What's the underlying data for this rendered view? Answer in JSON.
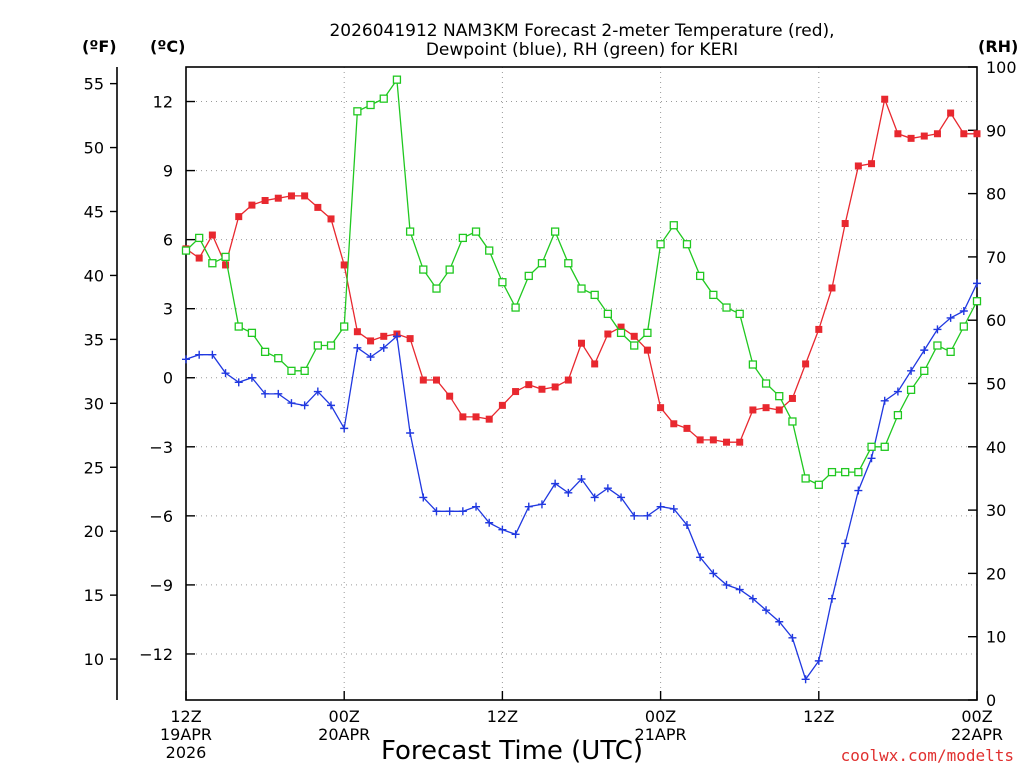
{
  "chart_data": {
    "type": "line",
    "title_line1": "2026041912 NAM3KM Forecast 2-meter Temperature (red),",
    "title_line2": "Dewpoint (blue), RH (green) for KERI",
    "xlabel": "Forecast Time (UTC)",
    "credit": "coolwx.com/modelts",
    "units": {
      "fahrenheit": "(ºF)",
      "celsius": "(ºC)",
      "rh": "(RH)"
    },
    "x_range_hours": [
      0,
      60
    ],
    "y_celsius_range": [
      -14,
      13.5
    ],
    "y_rh_range": [
      0,
      100
    ],
    "x_ticks": [
      {
        "hour": 0,
        "line1": "12Z",
        "line2": "19APR",
        "line3": "2026"
      },
      {
        "hour": 12,
        "line1": "00Z",
        "line2": "20APR",
        "line3": ""
      },
      {
        "hour": 24,
        "line1": "12Z",
        "line2": "",
        "line3": ""
      },
      {
        "hour": 36,
        "line1": "00Z",
        "line2": "21APR",
        "line3": ""
      },
      {
        "hour": 48,
        "line1": "12Z",
        "line2": "",
        "line3": ""
      },
      {
        "hour": 60,
        "line1": "00Z",
        "line2": "22APR",
        "line3": ""
      }
    ],
    "celsius_ticks": [
      "12",
      "9",
      "6",
      "3",
      "0",
      "−3",
      "−6",
      "−9",
      "−12"
    ],
    "celsius_tick_values": [
      12,
      9,
      6,
      3,
      0,
      -3,
      -6,
      -9,
      -12
    ],
    "fahrenheit_ticks": [
      "55",
      "50",
      "45",
      "40",
      "35",
      "30",
      "25",
      "20",
      "15",
      "10"
    ],
    "fahrenheit_tick_values": [
      55,
      50,
      45,
      40,
      35,
      30,
      25,
      20,
      15,
      10
    ],
    "rh_ticks": [
      "100",
      "90",
      "80",
      "70",
      "60",
      "50",
      "40",
      "30",
      "20",
      "10",
      "0"
    ],
    "rh_tick_values": [
      100,
      90,
      80,
      70,
      60,
      50,
      40,
      30,
      20,
      10,
      0
    ],
    "colors": {
      "temperature": "#e8282f",
      "dewpoint": "#2038e0",
      "rh": "#20c820"
    },
    "series": [
      {
        "name": "2-meter Temperature",
        "unit": "C",
        "color": "#e8282f",
        "values": [
          5.6,
          5.2,
          6.2,
          4.9,
          7.0,
          7.5,
          7.7,
          7.8,
          7.9,
          7.9,
          7.4,
          6.9,
          4.9,
          2.0,
          1.6,
          1.8,
          1.9,
          1.7,
          -0.1,
          -0.1,
          -0.8,
          -1.7,
          -1.7,
          -1.8,
          -1.2,
          -0.6,
          -0.3,
          -0.5,
          -0.4,
          -0.1,
          1.5,
          0.6,
          1.9,
          2.2,
          1.8,
          1.2,
          -1.3,
          -2.0,
          -2.2,
          -2.7,
          -2.7,
          -2.8,
          -2.8,
          -1.4,
          -1.3,
          -1.4,
          -0.9,
          0.6,
          2.1,
          3.9,
          6.7,
          9.2,
          9.3,
          12.1,
          10.6,
          10.4,
          10.5,
          10.6,
          11.5,
          10.6,
          10.6
        ]
      },
      {
        "name": "Dewpoint",
        "unit": "C",
        "color": "#2038e0",
        "values": [
          0.8,
          1.0,
          1.0,
          0.2,
          -0.2,
          0.0,
          -0.7,
          -0.7,
          -1.1,
          -1.2,
          -0.6,
          -1.2,
          -2.2,
          1.3,
          0.9,
          1.3,
          1.8,
          -2.4,
          -5.2,
          -5.8,
          -5.8,
          -5.8,
          -5.6,
          -6.3,
          -6.6,
          -6.8,
          -5.6,
          -5.5,
          -4.6,
          -5.0,
          -4.4,
          -5.2,
          -4.8,
          -5.2,
          -6.0,
          -6.0,
          -5.6,
          -5.7,
          -6.4,
          -7.8,
          -8.5,
          -9.0,
          -9.2,
          -9.6,
          -10.1,
          -10.6,
          -11.3,
          -13.1,
          -12.3,
          -9.6,
          -7.2,
          -4.9,
          -3.5,
          -1.0,
          -0.6,
          0.3,
          1.2,
          2.1,
          2.6,
          2.9,
          4.1
        ]
      },
      {
        "name": "RH",
        "unit": "%",
        "color": "#20c820",
        "values": [
          71,
          73,
          69,
          70,
          59,
          58,
          55,
          54,
          52,
          52,
          56,
          56,
          59,
          93,
          94,
          95,
          98,
          74,
          68,
          65,
          68,
          73,
          74,
          71,
          66,
          62,
          67,
          69,
          74,
          69,
          65,
          64,
          61,
          58,
          56,
          58,
          72,
          75,
          72,
          67,
          64,
          62,
          61,
          53,
          50,
          48,
          44,
          35,
          34,
          36,
          36,
          36,
          40,
          40,
          45,
          49,
          52,
          56,
          55,
          59,
          63
        ]
      }
    ]
  }
}
